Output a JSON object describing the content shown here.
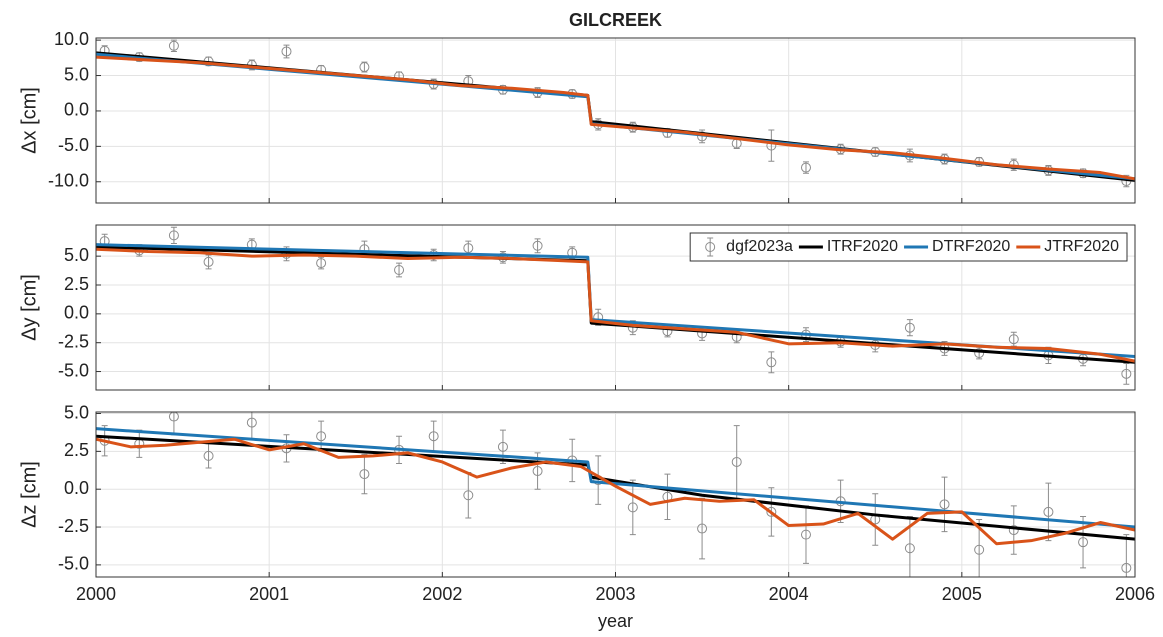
{
  "chart_data": [
    {
      "type": "scatter-line",
      "title": "GILCREEK",
      "ylabel": "Δx [cm]",
      "xlim": [
        2000,
        2006
      ],
      "xticks": [
        2000,
        2001,
        2002,
        2003,
        2004,
        2005,
        2006
      ],
      "xtick_labels": false,
      "ylim": [
        -13,
        10.3
      ],
      "yticks": [
        {
          "value": 10,
          "label": "10.0"
        },
        {
          "value": 5,
          "label": "5.0"
        },
        {
          "value": 0,
          "label": "0.0"
        },
        {
          "value": -5,
          "label": "-5.0"
        },
        {
          "value": -10,
          "label": "-10.0"
        }
      ],
      "grid": true,
      "series": [
        {
          "kind": "errorbar",
          "color": "#8c8c8c",
          "x": [
            2000.05,
            2000.25,
            2000.45,
            2000.65,
            2000.9,
            2001.1,
            2001.3,
            2001.55,
            2001.75,
            2001.95,
            2002.15,
            2002.35,
            2002.55,
            2002.75,
            2002.9,
            2003.1,
            2003.3,
            2003.5,
            2003.7,
            2003.9,
            2004.1,
            2004.3,
            2004.5,
            2004.7,
            2004.9,
            2005.1,
            2005.3,
            2005.5,
            2005.7,
            2005.95
          ],
          "values": [
            8.5,
            7.6,
            9.2,
            7.0,
            6.5,
            8.4,
            5.8,
            6.2,
            4.9,
            3.8,
            4.2,
            3.0,
            2.6,
            2.4,
            -1.9,
            -2.3,
            -3.1,
            -3.6,
            -4.6,
            -4.9,
            -8.0,
            -5.4,
            -5.8,
            -6.3,
            -6.8,
            -7.2,
            -7.6,
            -8.4,
            -8.8,
            -9.9
          ],
          "errors": [
            0.7,
            0.6,
            0.8,
            0.6,
            0.7,
            0.9,
            0.6,
            0.7,
            0.6,
            0.7,
            0.8,
            0.6,
            0.7,
            0.6,
            0.8,
            0.7,
            0.6,
            0.9,
            0.7,
            2.2,
            0.8,
            0.7,
            0.6,
            0.9,
            0.7,
            0.6,
            0.8,
            0.7,
            0.6,
            0.8
          ]
        },
        {
          "kind": "line",
          "color": "#000000",
          "x": [
            2000,
            2002.84,
            2002.86,
            2006
          ],
          "values": [
            8.2,
            2.2,
            -1.5,
            -9.8
          ]
        },
        {
          "kind": "line",
          "color": "#1f77b4",
          "x": [
            2000,
            2002.84,
            2002.86,
            2006
          ],
          "values": [
            8.0,
            2.0,
            -1.8,
            -9.6
          ]
        },
        {
          "kind": "line",
          "color": "#d95319",
          "x": [
            2000,
            2000.3,
            2000.6,
            2000.9,
            2001.2,
            2001.5,
            2001.8,
            2002.1,
            2002.4,
            2002.7,
            2002.84,
            2002.86,
            2003.1,
            2003.4,
            2003.7,
            2004,
            2004.3,
            2004.6,
            2004.9,
            2005.2,
            2005.5,
            2005.8,
            2006
          ],
          "values": [
            7.6,
            7.2,
            6.8,
            6.2,
            5.6,
            5.0,
            4.4,
            3.6,
            3.2,
            2.6,
            2.2,
            -1.9,
            -2.4,
            -3.0,
            -3.9,
            -4.8,
            -5.5,
            -5.9,
            -6.7,
            -7.6,
            -8.2,
            -8.7,
            -9.6
          ]
        }
      ]
    },
    {
      "type": "scatter-line",
      "ylabel": "Δy [cm]",
      "xlim": [
        2000,
        2006
      ],
      "xticks": [
        2000,
        2001,
        2002,
        2003,
        2004,
        2005,
        2006
      ],
      "xtick_labels": false,
      "ylim": [
        -6.6,
        7.7
      ],
      "yticks": [
        {
          "value": 5,
          "label": "5.0"
        },
        2.5,
        {
          "value": 0,
          "label": "0.0"
        },
        -2.5,
        {
          "value": -5,
          "label": "-5.0"
        }
      ],
      "grid": true,
      "legend": "upper right",
      "series": [
        {
          "name": "dgf2023a",
          "kind": "errorbar",
          "color": "#8c8c8c",
          "x": [
            2000.05,
            2000.25,
            2000.45,
            2000.65,
            2000.9,
            2001.1,
            2001.3,
            2001.55,
            2001.75,
            2001.95,
            2002.15,
            2002.35,
            2002.55,
            2002.75,
            2002.9,
            2003.1,
            2003.3,
            2003.5,
            2003.7,
            2003.9,
            2004.1,
            2004.3,
            2004.5,
            2004.7,
            2004.9,
            2005.1,
            2005.3,
            2005.5,
            2005.7,
            2005.95
          ],
          "values": [
            6.3,
            5.5,
            6.8,
            4.5,
            6.0,
            5.2,
            4.4,
            5.6,
            3.8,
            5.1,
            5.7,
            4.9,
            5.9,
            5.3,
            -0.3,
            -1.2,
            -1.5,
            -1.7,
            -2.0,
            -4.2,
            -1.8,
            -2.4,
            -2.7,
            -1.2,
            -3.0,
            -3.4,
            -2.2,
            -3.6,
            -3.9,
            -5.2
          ],
          "errors": [
            0.6,
            0.5,
            0.7,
            0.6,
            0.5,
            0.6,
            0.5,
            0.7,
            0.6,
            0.5,
            0.6,
            0.5,
            0.6,
            0.5,
            0.7,
            0.6,
            0.5,
            0.6,
            0.5,
            0.9,
            0.6,
            0.5,
            0.6,
            0.7,
            0.6,
            0.5,
            0.6,
            0.7,
            0.6,
            0.9
          ]
        },
        {
          "name": "ITRF2020",
          "kind": "line",
          "color": "#000000",
          "x": [
            2000,
            2002.84,
            2002.86,
            2006
          ],
          "values": [
            5.8,
            4.6,
            -0.8,
            -4.2
          ]
        },
        {
          "name": "DTRF2020",
          "kind": "line",
          "color": "#1f77b4",
          "x": [
            2000,
            2002.84,
            2002.86,
            2006
          ],
          "values": [
            6.0,
            4.9,
            -0.5,
            -3.7
          ]
        },
        {
          "name": "JTRF2020",
          "kind": "line",
          "color": "#d95319",
          "x": [
            2000,
            2000.3,
            2000.6,
            2000.9,
            2001.2,
            2001.5,
            2001.8,
            2002.1,
            2002.4,
            2002.7,
            2002.84,
            2002.86,
            2003.1,
            2003.4,
            2003.7,
            2004,
            2004.3,
            2004.6,
            2004.9,
            2005.2,
            2005.5,
            2005.8,
            2006
          ],
          "values": [
            5.6,
            5.4,
            5.3,
            5.0,
            5.1,
            5.0,
            4.8,
            4.9,
            4.8,
            4.6,
            4.5,
            -0.6,
            -1.0,
            -1.3,
            -1.6,
            -2.6,
            -2.5,
            -2.8,
            -2.6,
            -2.9,
            -3.0,
            -3.5,
            -4.1
          ]
        }
      ]
    },
    {
      "type": "scatter-line",
      "ylabel": "Δz [cm]",
      "xlabel": "year",
      "xlim": [
        2000,
        2006
      ],
      "xticks": [
        2000,
        2001,
        2002,
        2003,
        2004,
        2005,
        2006
      ],
      "xtick_labels": true,
      "ylim": [
        -5.8,
        5.1
      ],
      "yticks": [
        {
          "value": 5,
          "label": "5.0"
        },
        2.5,
        {
          "value": 0,
          "label": "0.0"
        },
        -2.5,
        {
          "value": -5,
          "label": "-5.0"
        }
      ],
      "grid": true,
      "series": [
        {
          "kind": "errorbar",
          "color": "#8c8c8c",
          "x": [
            2000.05,
            2000.25,
            2000.45,
            2000.65,
            2000.9,
            2001.1,
            2001.3,
            2001.55,
            2001.75,
            2001.95,
            2002.15,
            2002.35,
            2002.55,
            2002.75,
            2002.9,
            2003.1,
            2003.3,
            2003.5,
            2003.7,
            2003.9,
            2004.1,
            2004.3,
            2004.5,
            2004.7,
            2004.9,
            2005.1,
            2005.3,
            2005.5,
            2005.7,
            2005.95
          ],
          "values": [
            3.2,
            3.0,
            4.8,
            2.2,
            4.4,
            2.7,
            3.5,
            1.0,
            2.6,
            3.5,
            -0.4,
            2.8,
            1.2,
            1.9,
            0.6,
            -1.2,
            -0.5,
            -2.6,
            1.8,
            -1.5,
            -3.0,
            -0.8,
            -2.0,
            -3.9,
            -1.0,
            -4.0,
            -2.7,
            -1.5,
            -3.5,
            -5.2
          ],
          "errors": [
            1.0,
            0.9,
            1.2,
            0.8,
            1.1,
            0.9,
            1.0,
            1.3,
            0.9,
            1.0,
            1.5,
            1.1,
            1.2,
            1.4,
            1.6,
            1.8,
            1.5,
            2.0,
            2.4,
            1.6,
            1.9,
            1.4,
            1.7,
            2.1,
            1.8,
            2.0,
            1.6,
            1.9,
            1.7,
            2.2
          ]
        },
        {
          "kind": "line",
          "color": "#000000",
          "x": [
            2000,
            2002.84,
            2002.86,
            2003.5,
            2004.5,
            2006
          ],
          "values": [
            3.5,
            1.6,
            0.8,
            -0.4,
            -1.7,
            -3.3
          ]
        },
        {
          "kind": "line",
          "color": "#1f77b4",
          "x": [
            2000,
            2002.84,
            2002.86,
            2006
          ],
          "values": [
            4.0,
            1.8,
            0.5,
            -2.5
          ]
        },
        {
          "kind": "line",
          "color": "#d95319",
          "x": [
            2000,
            2000.2,
            2000.4,
            2000.6,
            2000.8,
            2001,
            2001.2,
            2001.4,
            2001.6,
            2001.8,
            2002,
            2002.2,
            2002.4,
            2002.6,
            2002.8,
            2003,
            2003.2,
            2003.4,
            2003.6,
            2003.8,
            2004,
            2004.2,
            2004.4,
            2004.6,
            2004.8,
            2005,
            2005.2,
            2005.4,
            2005.6,
            2005.8,
            2006
          ],
          "values": [
            3.3,
            2.8,
            2.9,
            3.1,
            3.3,
            2.6,
            3.0,
            2.1,
            2.2,
            2.4,
            1.8,
            0.8,
            1.4,
            1.8,
            1.5,
            0.2,
            -1.0,
            -0.6,
            -0.8,
            -0.7,
            -2.4,
            -2.3,
            -1.6,
            -3.3,
            -1.6,
            -1.5,
            -3.6,
            -3.4,
            -2.9,
            -2.2,
            -2.7
          ]
        }
      ]
    }
  ]
}
